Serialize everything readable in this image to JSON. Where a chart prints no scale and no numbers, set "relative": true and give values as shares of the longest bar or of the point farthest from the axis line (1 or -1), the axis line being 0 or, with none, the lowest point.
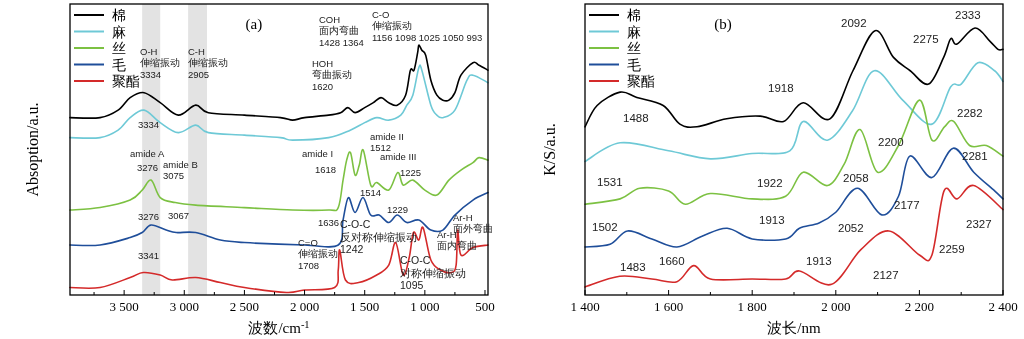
{
  "chart_data": [
    {
      "type": "line",
      "title": "(a)",
      "xlabel": "波数/cm$^{-1}$",
      "ylabel": "Absoption/a.u.",
      "relative": true,
      "legend": "top left",
      "xlim": [
        3950,
        475
      ],
      "xticks": [
        {
          "value": 3750,
          "label": null
        },
        {
          "value": 3500,
          "label": "3 500"
        },
        {
          "value": 3250,
          "label": null
        },
        {
          "value": 3000,
          "label": "3 000"
        },
        {
          "value": 2750,
          "label": null
        },
        {
          "value": 2500,
          "label": "2 500"
        },
        {
          "value": 2250,
          "label": null
        },
        {
          "value": 2000,
          "label": "2 000"
        },
        {
          "value": 1750,
          "label": null
        },
        {
          "value": 1500,
          "label": "1 500"
        },
        {
          "value": 1250,
          "label": null
        },
        {
          "value": 1000,
          "label": "1 000"
        },
        {
          "value": 750,
          "label": null
        },
        500
      ],
      "bands": [
        {
          "axis": "x",
          "from": 3350,
          "to": 3200,
          "color": "#e3e3e3"
        },
        {
          "axis": "x",
          "from": 2968,
          "to": 2811,
          "color": "#e3e3e3"
        }
      ],
      "series": [
        {
          "name": "棉",
          "color": "#000000",
          "x": [
            3950,
            3700,
            3550,
            3450,
            3334,
            3200,
            3050,
            2905,
            2800,
            2500,
            2200,
            2100,
            2000,
            1800,
            1700,
            1640,
            1580,
            1500,
            1428,
            1364,
            1300,
            1230,
            1160,
            1120,
            1090,
            1060,
            1050,
            1025,
            993,
            950,
            900,
            850,
            800,
            750,
            700,
            600,
            550,
            475
          ],
          "values": [
            0.71,
            0.71,
            0.74,
            0.79,
            0.81,
            0.77,
            0.72,
            0.76,
            0.73,
            0.72,
            0.71,
            0.7,
            0.71,
            0.72,
            0.73,
            0.75,
            0.73,
            0.75,
            0.77,
            0.79,
            0.77,
            0.76,
            0.8,
            0.9,
            0.9,
            0.97,
            1.0,
            0.98,
            0.96,
            0.86,
            0.8,
            0.78,
            0.78,
            0.81,
            0.88,
            0.93,
            0.92,
            0.9
          ]
        },
        {
          "name": "麻",
          "color": "#6ec9d6",
          "x": [
            3950,
            3700,
            3550,
            3450,
            3334,
            3200,
            3050,
            2905,
            2800,
            2500,
            2200,
            2100,
            1800,
            1620,
            1500,
            1400,
            1300,
            1200,
            1150,
            1100,
            1050,
            1025,
            950,
            900,
            850,
            750,
            650,
            600,
            475
          ],
          "values": [
            0.63,
            0.63,
            0.66,
            0.71,
            0.74,
            0.69,
            0.65,
            0.68,
            0.65,
            0.64,
            0.63,
            0.62,
            0.63,
            0.66,
            0.69,
            0.71,
            0.7,
            0.72,
            0.76,
            0.8,
            0.91,
            0.9,
            0.76,
            0.72,
            0.71,
            0.74,
            0.86,
            0.88,
            0.85
          ]
        },
        {
          "name": "丝",
          "color": "#7cc142",
          "x": [
            3950,
            3700,
            3450,
            3350,
            3276,
            3200,
            3075,
            2905,
            2500,
            2100,
            1800,
            1720,
            1680,
            1650,
            1618,
            1580,
            1545,
            1512,
            1450,
            1400,
            1300,
            1225,
            1180,
            1100,
            1000,
            900,
            800,
            700,
            600,
            550,
            475
          ],
          "values": [
            0.34,
            0.35,
            0.38,
            0.42,
            0.46,
            0.39,
            0.37,
            0.36,
            0.35,
            0.34,
            0.34,
            0.35,
            0.46,
            0.54,
            0.57,
            0.48,
            0.52,
            0.58,
            0.44,
            0.45,
            0.42,
            0.49,
            0.44,
            0.46,
            0.42,
            0.4,
            0.46,
            0.5,
            0.53,
            0.55,
            0.54
          ]
        },
        {
          "name": "毛",
          "color": "#1f4e9a",
          "x": [
            3950,
            3700,
            3450,
            3350,
            3276,
            3150,
            3067,
            2905,
            2700,
            2500,
            2000,
            1720,
            1680,
            1636,
            1580,
            1514,
            1450,
            1380,
            1300,
            1229,
            1150,
            1050,
            950,
            850,
            750,
            600,
            475
          ],
          "values": [
            0.2,
            0.2,
            0.23,
            0.25,
            0.28,
            0.26,
            0.25,
            0.25,
            0.22,
            0.21,
            0.2,
            0.2,
            0.3,
            0.39,
            0.33,
            0.39,
            0.32,
            0.32,
            0.29,
            0.32,
            0.29,
            0.3,
            0.26,
            0.26,
            0.32,
            0.38,
            0.41
          ]
        },
        {
          "name": "聚酯",
          "color": "#d42a2a",
          "x": [
            3950,
            3700,
            3450,
            3341,
            3200,
            3100,
            2905,
            2700,
            2500,
            2150,
            2000,
            1750,
            1720,
            1708,
            1660,
            1550,
            1400,
            1300,
            1242,
            1180,
            1130,
            1095,
            1050,
            1015,
            950,
            870,
            780,
            740,
            727,
            700,
            600,
            475
          ],
          "values": [
            0.03,
            0.03,
            0.07,
            0.09,
            0.08,
            0.06,
            0.07,
            0.05,
            0.03,
            0.01,
            0.02,
            0.03,
            0.1,
            0.18,
            0.06,
            0.05,
            0.08,
            0.12,
            0.21,
            0.08,
            0.15,
            0.25,
            0.22,
            0.27,
            0.14,
            0.1,
            0.09,
            0.12,
            0.26,
            0.16,
            0.19,
            0.2
          ]
        }
      ],
      "annotations": [
        "O-H\n伸缩振动\n3334",
        "C-H\n伸缩振动\n2905",
        "HOH\n弯曲振动\n1620",
        "COH\n面内弯曲\n1428 1364",
        "C-O\n伸缩振动\n1156 1098 1025 1050 993",
        "3334",
        "amide A",
        "3276",
        "amide B\n3075",
        "amide I",
        "1618",
        "amide II\n1512",
        "amide III",
        "1225",
        "3276",
        "3067",
        "1514",
        "1229",
        "1636",
        "3341",
        "C=O\n伸缩振动\n1708",
        "C-O-C\n反对称伸缩振动\n1242",
        "C-O-C\n对称伸缩振动\n1095",
        "Ar-H\n面内弯曲",
        "Ar-H\n面外弯曲"
      ]
    },
    {
      "type": "line",
      "title": "(b)",
      "xlabel": "波长/nm",
      "ylabel": "K/S/a.u.",
      "relative": true,
      "legend": "top left",
      "xlim": [
        1400,
        2400
      ],
      "xticks": [
        {
          "value": 1400,
          "label": "1 400"
        },
        {
          "value": 1500,
          "label": null
        },
        {
          "value": 1600,
          "label": "1 600"
        },
        {
          "value": 1700,
          "label": null
        },
        {
          "value": 1800,
          "label": "1 800"
        },
        {
          "value": 1900,
          "label": null
        },
        {
          "value": 2000,
          "label": "2 000"
        },
        {
          "value": 2100,
          "label": null
        },
        {
          "value": 2200,
          "label": "2 200"
        },
        {
          "value": 2300,
          "label": null
        },
        {
          "value": 2400,
          "label": "2 400"
        }
      ],
      "series": [
        {
          "name": "棉",
          "color": "#000000",
          "x": [
            1400,
            1429,
            1484,
            1524,
            1587,
            1627,
            1668,
            1739,
            1819,
            1875,
            1922,
            1986,
            2041,
            2094,
            2138,
            2178,
            2222,
            2258,
            2275,
            2290,
            2333,
            2369,
            2388,
            2400
          ],
          "values": [
            0.63,
            0.71,
            0.76,
            0.74,
            0.71,
            0.64,
            0.63,
            0.66,
            0.67,
            0.65,
            0.72,
            0.66,
            0.84,
            0.99,
            0.89,
            0.84,
            0.79,
            0.89,
            0.96,
            0.94,
            1.0,
            0.95,
            0.92,
            0.92
          ]
        },
        {
          "name": "麻",
          "color": "#6ec9d6",
          "x": [
            1400,
            1484,
            1600,
            1700,
            1800,
            1890,
            1922,
            1980,
            2040,
            2092,
            2160,
            2230,
            2275,
            2300,
            2340,
            2380,
            2400
          ],
          "values": [
            0.5,
            0.57,
            0.54,
            0.51,
            0.53,
            0.54,
            0.65,
            0.58,
            0.69,
            0.84,
            0.73,
            0.64,
            0.78,
            0.79,
            0.87,
            0.84,
            0.8
          ]
        },
        {
          "name": "丝",
          "color": "#7cc142",
          "x": [
            1400,
            1484,
            1531,
            1600,
            1640,
            1700,
            1800,
            1880,
            1922,
            1980,
            2020,
            2058,
            2100,
            2150,
            2200,
            2230,
            2260,
            2282,
            2320,
            2360,
            2400
          ],
          "values": [
            0.34,
            0.36,
            0.4,
            0.39,
            0.34,
            0.38,
            0.36,
            0.37,
            0.46,
            0.41,
            0.49,
            0.62,
            0.46,
            0.56,
            0.73,
            0.58,
            0.63,
            0.65,
            0.56,
            0.56,
            0.52
          ]
        },
        {
          "name": "毛",
          "color": "#1f4e9a",
          "x": [
            1400,
            1460,
            1502,
            1560,
            1620,
            1680,
            1740,
            1800,
            1880,
            1913,
            1960,
            2000,
            2052,
            2110,
            2150,
            2177,
            2230,
            2281,
            2330,
            2380,
            2400
          ],
          "values": [
            0.18,
            0.19,
            0.24,
            0.21,
            0.18,
            0.22,
            0.25,
            0.21,
            0.21,
            0.25,
            0.27,
            0.31,
            0.4,
            0.3,
            0.37,
            0.52,
            0.44,
            0.55,
            0.46,
            0.39,
            0.36
          ]
        },
        {
          "name": "聚酯",
          "color": "#d42a2a",
          "x": [
            1400,
            1483,
            1560,
            1620,
            1660,
            1700,
            1800,
            1880,
            1913,
            1990,
            2060,
            2127,
            2200,
            2230,
            2259,
            2290,
            2330,
            2400
          ],
          "values": [
            0.03,
            0.07,
            0.06,
            0.05,
            0.11,
            0.06,
            0.06,
            0.06,
            0.09,
            0.04,
            0.17,
            0.24,
            0.15,
            0.15,
            0.39,
            0.36,
            0.41,
            0.32
          ]
        }
      ],
      "annotations": [
        "2092",
        "2333",
        "2275",
        "1918",
        "1488",
        "2282",
        "2200",
        "2281",
        "1531",
        "1922",
        "2058",
        "2177",
        "1913",
        "2052",
        "2327",
        "1502",
        "2259",
        "1483",
        "1660",
        "1913",
        "2127"
      ]
    }
  ]
}
